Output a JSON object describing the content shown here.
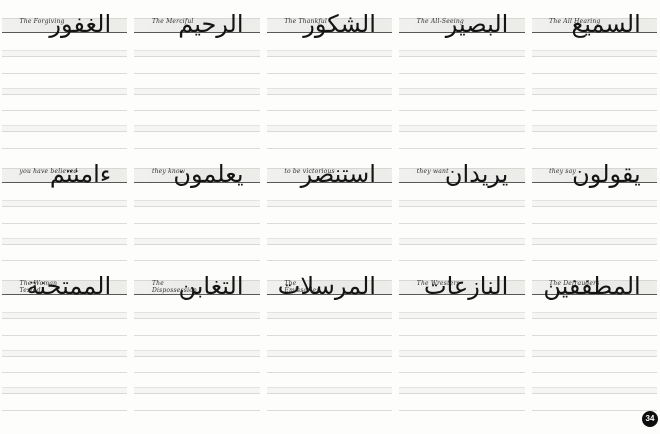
{
  "page": {
    "number": "34"
  },
  "rows": [
    {
      "cells": [
        {
          "label": "The Forgiving",
          "arabic": "الغفور"
        },
        {
          "label": "The Merciful",
          "arabic": "الرحيم"
        },
        {
          "label": "The Thankful",
          "arabic": "الشكور"
        },
        {
          "label": "The All-Seeing",
          "arabic": "البصير"
        },
        {
          "label": "The All Hearing",
          "arabic": "السميع"
        }
      ]
    },
    {
      "cells": [
        {
          "label": "you have believed",
          "arabic": "ءامنتم"
        },
        {
          "label": "they know",
          "arabic": "يعلمون"
        },
        {
          "label": "to be victorious",
          "arabic": "استنصر"
        },
        {
          "label": "they want",
          "arabic": "يريدان"
        },
        {
          "label": "they say",
          "arabic": "يقولون"
        }
      ]
    },
    {
      "cells": [
        {
          "label": "The Woman\nTested",
          "arabic": "الممتحنة"
        },
        {
          "label": "The\nDispossession",
          "arabic": "التغابن"
        },
        {
          "label": "The\nEmissaries",
          "arabic": "المرسلات"
        },
        {
          "label": "The Wresters",
          "arabic": "النازعات"
        },
        {
          "label": "The Defrauders",
          "arabic": "المطففين"
        }
      ]
    }
  ]
}
